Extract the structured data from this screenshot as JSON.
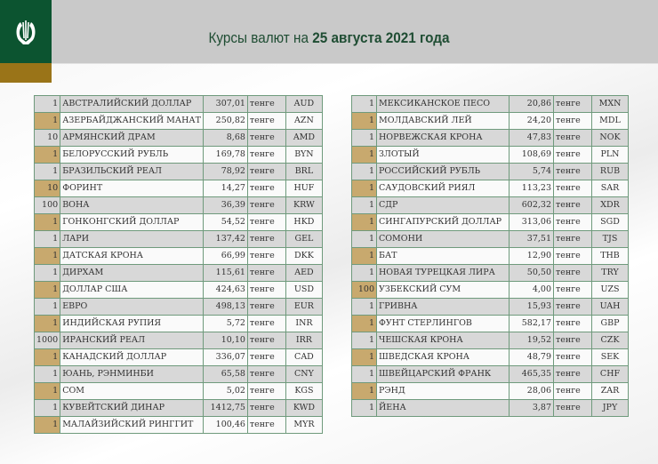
{
  "header": {
    "title_prefix": "Курсы валют на ",
    "title_date": "25 августа 2021 года"
  },
  "colors": {
    "brand_green": "#0c5430",
    "brand_gold": "#9a7418",
    "highlight": "#c8a96e"
  },
  "unit": "тенге",
  "left_table": [
    [
      "1",
      "АВСТРАЛИЙСКИЙ ДОЛЛАР",
      "307,01",
      "AUD"
    ],
    [
      "1",
      "АЗЕРБАЙДЖАНСКИЙ МАНАТ",
      "250,82",
      "AZN"
    ],
    [
      "10",
      "АРМЯНСКИЙ  ДРАМ",
      "8,68",
      "AMD"
    ],
    [
      "1",
      "БЕЛОРУССКИЙ РУБЛЬ",
      "169,78",
      "BYN"
    ],
    [
      "1",
      "БРАЗИЛЬСКИЙ РЕАЛ",
      "78,92",
      "BRL"
    ],
    [
      "10",
      "ФОРИНТ",
      "14,27",
      "HUF"
    ],
    [
      "100",
      "ВОНА",
      "36,39",
      "KRW"
    ],
    [
      "1",
      "ГОНКОНГСКИЙ ДОЛЛАР",
      "54,52",
      "HKD"
    ],
    [
      "1",
      "ЛАРИ",
      "137,42",
      "GEL"
    ],
    [
      "1",
      "ДАТСКАЯ КРОНА",
      "66,99",
      "DKK"
    ],
    [
      "1",
      "ДИРХАМ",
      "115,61",
      "AED"
    ],
    [
      "1",
      "ДОЛЛАР США",
      "424,63",
      "USD"
    ],
    [
      "1",
      "ЕВРО",
      "498,13",
      "EUR"
    ],
    [
      "1",
      "ИНДИЙСКАЯ РУПИЯ",
      "5,72",
      "INR"
    ],
    [
      "1000",
      "ИРАНСКИЙ РЕАЛ",
      "10,10",
      "IRR"
    ],
    [
      "1",
      "КАНАДСКИЙ ДОЛЛАР",
      "336,07",
      "CAD"
    ],
    [
      "1",
      "ЮАНЬ, РЭНМИНБИ",
      "65,58",
      "CNY"
    ],
    [
      "1",
      "СОМ",
      "5,02",
      "KGS"
    ],
    [
      "1",
      "КУВЕЙТСКИЙ ДИНАР",
      "1412,75",
      "KWD"
    ],
    [
      "1",
      "МАЛАЙЗИЙСКИЙ РИНГГИТ",
      "100,46",
      "MYR"
    ]
  ],
  "right_table": [
    [
      "1",
      "МЕКСИКАНСКОЕ ПЕСО",
      "20,86",
      "MXN"
    ],
    [
      "1",
      "МОЛДАВСКИЙ ЛЕЙ",
      "24,20",
      "MDL"
    ],
    [
      "1",
      "НОРВЕЖСКАЯ КРОНА",
      "47,83",
      "NOK"
    ],
    [
      "1",
      "ЗЛОТЫЙ",
      "108,69",
      "PLN"
    ],
    [
      "1",
      "РОССИЙСКИЙ РУБЛЬ",
      "5,74",
      "RUB"
    ],
    [
      "1",
      "САУДОВСКИЙ РИЯЛ",
      "113,23",
      "SAR"
    ],
    [
      "1",
      "СДР",
      "602,32",
      "XDR"
    ],
    [
      "1",
      "СИНГАПУРСКИЙ ДОЛЛАР",
      "313,06",
      "SGD"
    ],
    [
      "1",
      "СОМОНИ",
      "37,51",
      "TJS"
    ],
    [
      "1",
      "БАТ",
      "12,90",
      "THB"
    ],
    [
      "1",
      "НОВАЯ ТУРЕЦКАЯ ЛИРА",
      "50,50",
      "TRY"
    ],
    [
      "100",
      "УЗБЕКСКИЙ СУМ",
      "4,00",
      "UZS"
    ],
    [
      "1",
      "ГРИВНА",
      "15,93",
      "UAH"
    ],
    [
      "1",
      "ФУНТ СТЕРЛИНГОВ",
      "582,17",
      "GBP"
    ],
    [
      "1",
      "ЧЕШСКАЯ КРОНА",
      "19,52",
      "CZK"
    ],
    [
      "1",
      "ШВЕДСКАЯ КРОНА",
      "48,79",
      "SEK"
    ],
    [
      "1",
      "ШВЕЙЦАРСКИЙ ФРАНК",
      "465,35",
      "CHF"
    ],
    [
      "1",
      "РЭНД",
      "28,06",
      "ZAR"
    ],
    [
      "1",
      "ЙЕНА",
      "3,87",
      "JPY"
    ]
  ]
}
